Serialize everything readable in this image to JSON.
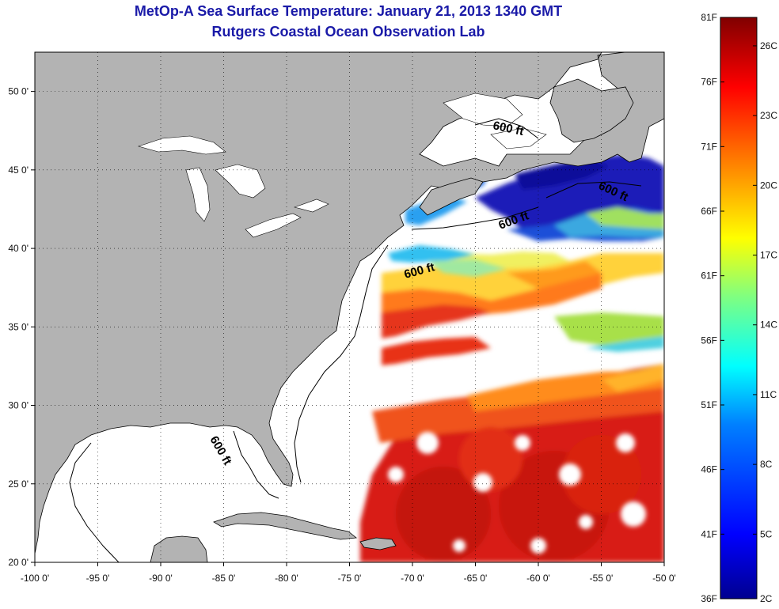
{
  "title": "MetOp-A Sea Surface Temperature:  January 21, 2013 1340 GMT",
  "subtitle": "Rutgers Coastal Ocean Observation Lab",
  "map": {
    "lon_range": [
      -100,
      -50
    ],
    "lat_range": [
      20,
      52.5
    ],
    "lon_ticks": [
      {
        "value": -100,
        "label": "-100 0'"
      },
      {
        "value": -95,
        "label": "-95 0'"
      },
      {
        "value": -90,
        "label": "-90 0'"
      },
      {
        "value": -85,
        "label": "-85 0'"
      },
      {
        "value": -80,
        "label": "-80 0'"
      },
      {
        "value": -75,
        "label": "-75 0'"
      },
      {
        "value": -70,
        "label": "-70 0'"
      },
      {
        "value": -65,
        "label": "-65 0'"
      },
      {
        "value": -60,
        "label": "-60 0'"
      },
      {
        "value": -55,
        "label": "-55 0'"
      },
      {
        "value": -50,
        "label": "-50 0'"
      }
    ],
    "lat_ticks": [
      {
        "value": 50,
        "label": "50 0'"
      },
      {
        "value": 45,
        "label": "45 0'"
      },
      {
        "value": 40,
        "label": "40 0'"
      },
      {
        "value": 35,
        "label": "35 0'"
      },
      {
        "value": 30,
        "label": "30 0'"
      },
      {
        "value": 25,
        "label": "25 0'"
      },
      {
        "value": 20,
        "label": "20 0'"
      }
    ],
    "grid": "dotted",
    "land_color": "#b3b3b3",
    "ocean_color": "#ffffff",
    "isobath_labels": [
      "600 ft",
      "600 ft",
      "600 ft",
      "600 ft",
      "600 ft"
    ]
  },
  "colorbar": {
    "fahrenheit_labels": [
      "81F",
      "76F",
      "71F",
      "66F",
      "61F",
      "56F",
      "51F",
      "46F",
      "41F",
      "36F"
    ],
    "celsius_labels": [
      "26C",
      "23C",
      "20C",
      "17C",
      "14C",
      "11C",
      "8C",
      "5C",
      "2C"
    ],
    "range_f": [
      36,
      81
    ],
    "colors": [
      "#00008f",
      "#0000ff",
      "#0080ff",
      "#00ffff",
      "#80ff80",
      "#ffff00",
      "#ff8000",
      "#ff0000",
      "#800000"
    ]
  }
}
